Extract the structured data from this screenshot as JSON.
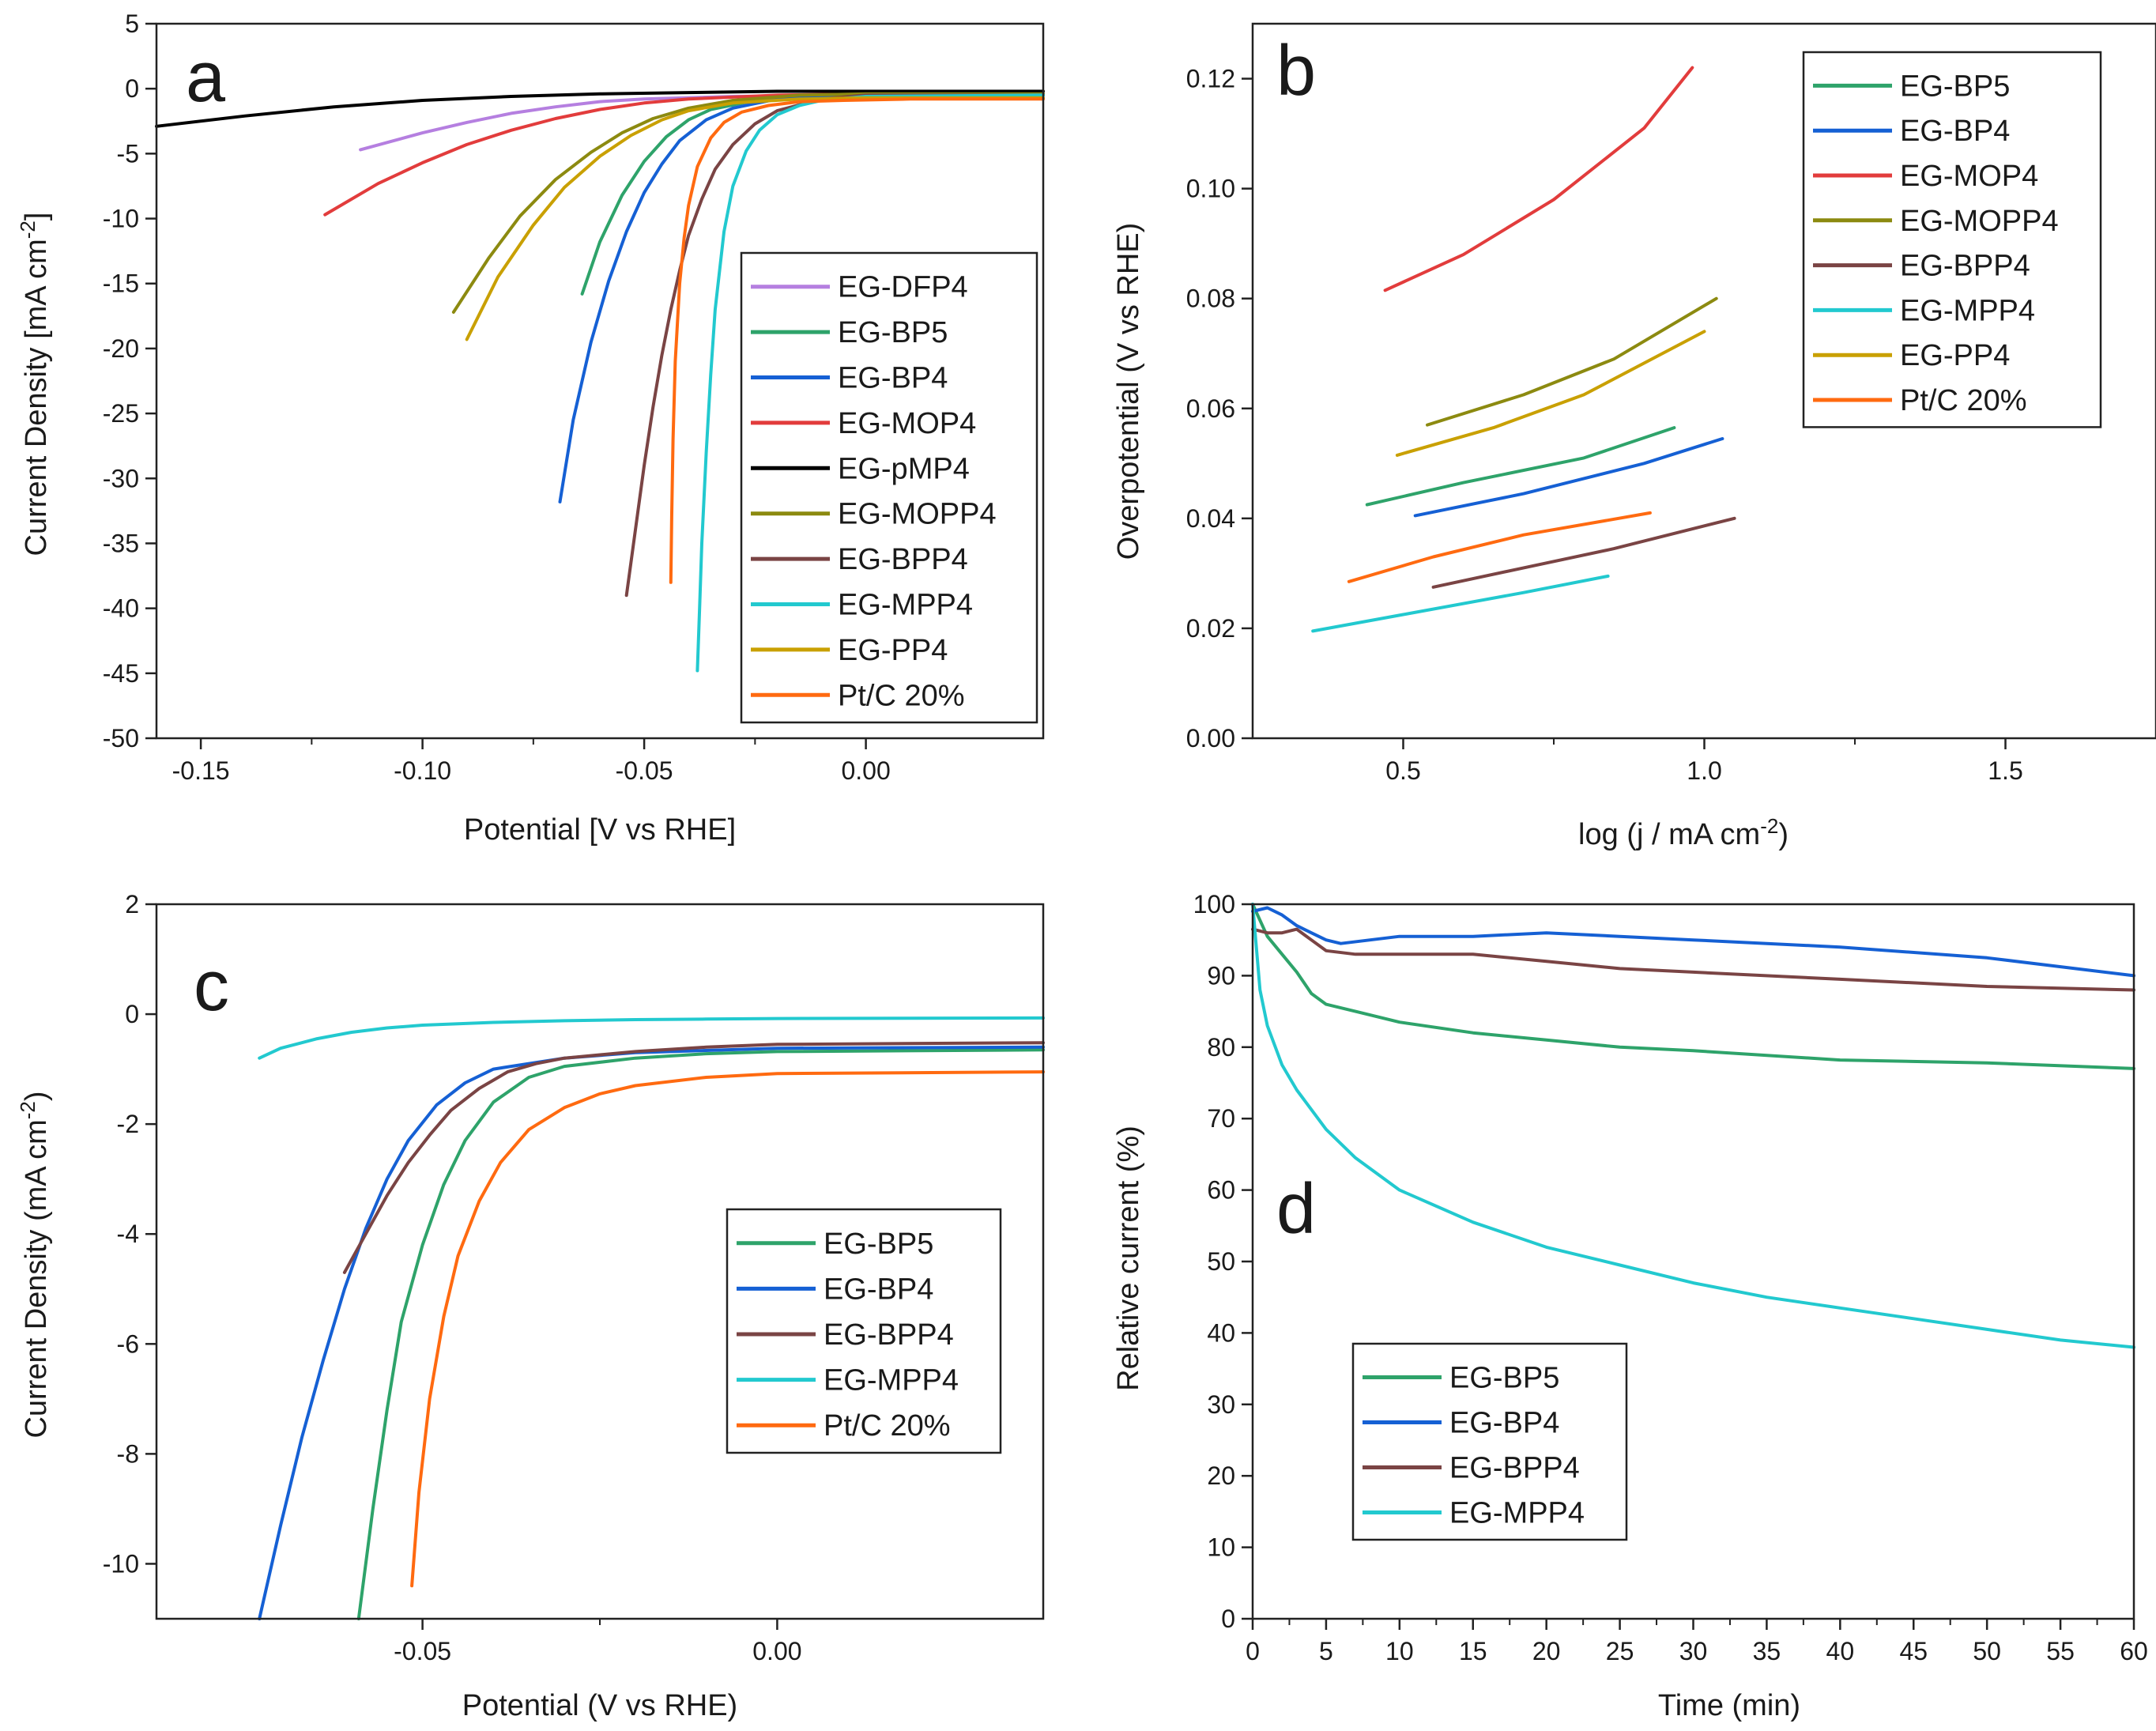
{
  "chart_data": [
    {
      "type": "line",
      "panel_label": "a",
      "xlabel": "Potential [V vs RHE]",
      "ylabel": "Current Density [mA cm",
      "ylabel_sup": "-2",
      "ylabel_end": "]",
      "xlim": [
        -0.16,
        0.04
      ],
      "ylim": [
        -50,
        5
      ],
      "xticks": [
        -0.15,
        -0.1,
        -0.05,
        0.0
      ],
      "xtick_labels": [
        "-0.15",
        "-0.10",
        "-0.05",
        "0.00"
      ],
      "yticks": [
        5,
        0,
        -5,
        -10,
        -15,
        -20,
        -25,
        -30,
        -35,
        -40,
        -45,
        -50
      ],
      "ytick_labels": [
        "5",
        "0",
        "-5",
        "-10",
        "-15",
        "-20",
        "-25",
        "-30",
        "-35",
        "-40",
        "-45",
        "-50"
      ],
      "legend_position": "center-right",
      "series": [
        {
          "name": "EG-DFP4",
          "color": "#b57fe0",
          "x": [
            -0.114,
            -0.1,
            -0.09,
            -0.08,
            -0.07,
            -0.06,
            -0.05,
            -0.03,
            0.0,
            0.04
          ],
          "y": [
            -4.7,
            -3.4,
            -2.6,
            -1.9,
            -1.4,
            -1.0,
            -0.8,
            -0.6,
            -0.5,
            -0.5
          ]
        },
        {
          "name": "EG-BP5",
          "color": "#2ea36a",
          "x": [
            -0.064,
            -0.06,
            -0.055,
            -0.05,
            -0.045,
            -0.04,
            -0.035,
            -0.025,
            -0.015,
            0.0,
            0.04
          ],
          "y": [
            -15.8,
            -11.8,
            -8.2,
            -5.6,
            -3.7,
            -2.4,
            -1.6,
            -0.9,
            -0.6,
            -0.5,
            -0.5
          ]
        },
        {
          "name": "EG-BP4",
          "color": "#1560d4",
          "x": [
            -0.069,
            -0.066,
            -0.062,
            -0.058,
            -0.054,
            -0.05,
            -0.046,
            -0.042,
            -0.036,
            -0.03,
            -0.02,
            0.0,
            0.04
          ],
          "y": [
            -31.8,
            -25.5,
            -19.5,
            -14.8,
            -11.0,
            -8.0,
            -5.8,
            -4.0,
            -2.4,
            -1.5,
            -0.8,
            -0.5,
            -0.5
          ]
        },
        {
          "name": "EG-MOP4",
          "color": "#e23c3c",
          "x": [
            -0.122,
            -0.11,
            -0.1,
            -0.09,
            -0.08,
            -0.07,
            -0.06,
            -0.05,
            -0.04,
            -0.02,
            0.0,
            0.04
          ],
          "y": [
            -9.7,
            -7.3,
            -5.7,
            -4.3,
            -3.2,
            -2.3,
            -1.6,
            -1.1,
            -0.8,
            -0.5,
            -0.4,
            -0.4
          ]
        },
        {
          "name": "EG-pMP4",
          "color": "#000000",
          "x": [
            -0.16,
            -0.14,
            -0.12,
            -0.1,
            -0.08,
            -0.06,
            -0.04,
            -0.02,
            0.0,
            0.04
          ],
          "y": [
            -2.9,
            -2.1,
            -1.4,
            -0.9,
            -0.6,
            -0.4,
            -0.3,
            -0.2,
            -0.2,
            -0.2
          ]
        },
        {
          "name": "EG-MOPP4",
          "color": "#8c8a10",
          "x": [
            -0.093,
            -0.085,
            -0.078,
            -0.07,
            -0.062,
            -0.055,
            -0.048,
            -0.04,
            -0.03,
            -0.015,
            0.0,
            0.04
          ],
          "y": [
            -17.2,
            -13.0,
            -9.8,
            -7.0,
            -4.9,
            -3.4,
            -2.3,
            -1.5,
            -0.9,
            -0.5,
            -0.4,
            -0.4
          ]
        },
        {
          "name": "EG-BPP4",
          "color": "#7a4444",
          "x": [
            -0.054,
            -0.052,
            -0.05,
            -0.048,
            -0.046,
            -0.044,
            -0.042,
            -0.04,
            -0.037,
            -0.034,
            -0.03,
            -0.025,
            -0.02,
            -0.01,
            0.0,
            0.04
          ],
          "y": [
            -39.0,
            -34.0,
            -29.0,
            -24.5,
            -20.5,
            -17.0,
            -14.0,
            -11.3,
            -8.5,
            -6.2,
            -4.3,
            -2.7,
            -1.7,
            -0.8,
            -0.5,
            -0.5
          ]
        },
        {
          "name": "EG-MPP4",
          "color": "#22c9cf",
          "x": [
            -0.038,
            -0.0375,
            -0.037,
            -0.036,
            -0.035,
            -0.034,
            -0.032,
            -0.03,
            -0.027,
            -0.024,
            -0.02,
            -0.015,
            -0.01,
            0.0,
            0.04
          ],
          "y": [
            -44.8,
            -40.0,
            -35.0,
            -28.0,
            -22.0,
            -17.0,
            -11.0,
            -7.5,
            -4.8,
            -3.2,
            -2.0,
            -1.3,
            -0.9,
            -0.6,
            -0.5
          ]
        },
        {
          "name": "EG-PP4",
          "color": "#c9a000",
          "x": [
            -0.09,
            -0.083,
            -0.075,
            -0.068,
            -0.06,
            -0.053,
            -0.046,
            -0.04,
            -0.03,
            -0.015,
            0.0,
            0.04
          ],
          "y": [
            -19.3,
            -14.5,
            -10.5,
            -7.6,
            -5.2,
            -3.6,
            -2.4,
            -1.7,
            -1.1,
            -0.8,
            -0.7,
            -0.7
          ]
        },
        {
          "name": "Pt/C 20%",
          "color": "#ff6a10",
          "x": [
            -0.044,
            -0.0438,
            -0.0435,
            -0.043,
            -0.042,
            -0.041,
            -0.04,
            -0.038,
            -0.035,
            -0.032,
            -0.028,
            -0.022,
            -0.015,
            -0.005,
            0.01,
            0.04
          ],
          "y": [
            -38.0,
            -33.0,
            -27.0,
            -21.0,
            -15.0,
            -11.5,
            -9.0,
            -6.0,
            -3.8,
            -2.6,
            -1.8,
            -1.3,
            -1.0,
            -0.9,
            -0.8,
            -0.8
          ]
        }
      ]
    },
    {
      "type": "line",
      "panel_label": "b",
      "xlabel": "log (j / mA cm",
      "xlabel_sup": "-2",
      "xlabel_end": ")",
      "ylabel": "Overpotential (V vs RHE)",
      "xlim": [
        0.25,
        1.75
      ],
      "ylim": [
        0,
        0.13
      ],
      "xticks": [
        0.5,
        1.0,
        1.5
      ],
      "xtick_labels": [
        "0.5",
        "1.0",
        "1.5"
      ],
      "yticks": [
        0,
        0.02,
        0.04,
        0.06,
        0.08,
        0.1,
        0.12
      ],
      "ytick_labels": [
        "0.00",
        "0.02",
        "0.04",
        "0.06",
        "0.08",
        "0.10",
        "0.12"
      ],
      "legend_position": "top-right",
      "series": [
        {
          "name": "EG-BP5",
          "color": "#2ea36a",
          "x": [
            0.44,
            0.6,
            0.8,
            0.95
          ],
          "y": [
            0.0425,
            0.0465,
            0.051,
            0.0565
          ]
        },
        {
          "name": "EG-BP4",
          "color": "#1560d4",
          "x": [
            0.52,
            0.7,
            0.9,
            1.03
          ],
          "y": [
            0.0405,
            0.0445,
            0.05,
            0.0545
          ]
        },
        {
          "name": "EG-MOP4",
          "color": "#e23c3c",
          "x": [
            0.47,
            0.6,
            0.75,
            0.9,
            0.98
          ],
          "y": [
            0.0815,
            0.088,
            0.098,
            0.111,
            0.122
          ]
        },
        {
          "name": "EG-MOPP4",
          "color": "#8c8a10",
          "x": [
            0.54,
            0.7,
            0.85,
            1.02
          ],
          "y": [
            0.057,
            0.0625,
            0.069,
            0.08
          ]
        },
        {
          "name": "EG-BPP4",
          "color": "#7a4444",
          "x": [
            0.55,
            0.7,
            0.85,
            1.05
          ],
          "y": [
            0.0275,
            0.031,
            0.0345,
            0.04
          ]
        },
        {
          "name": "EG-MPP4",
          "color": "#22c9cf",
          "x": [
            0.35,
            0.5,
            0.7,
            0.84
          ],
          "y": [
            0.0195,
            0.0225,
            0.0265,
            0.0295
          ]
        },
        {
          "name": "EG-PP4",
          "color": "#c9a000",
          "x": [
            0.49,
            0.65,
            0.8,
            1.0
          ],
          "y": [
            0.0515,
            0.0565,
            0.0625,
            0.074
          ]
        },
        {
          "name": "Pt/C 20%",
          "color": "#ff6a10",
          "x": [
            0.41,
            0.55,
            0.7,
            0.91
          ],
          "y": [
            0.0285,
            0.033,
            0.037,
            0.041
          ]
        }
      ]
    },
    {
      "type": "line",
      "panel_label": "c",
      "xlabel": "Potential (V vs RHE)",
      "ylabel": "Current Density (mA cm",
      "ylabel_sup": "-2",
      "ylabel_end": ")",
      "xlim": [
        -0.0875,
        0.0375
      ],
      "ylim": [
        -11,
        2
      ],
      "xticks": [
        -0.05,
        0.0
      ],
      "xtick_labels": [
        "-0.05",
        "0.00"
      ],
      "yticks": [
        2,
        0,
        -2,
        -4,
        -6,
        -8,
        -10
      ],
      "ytick_labels": [
        "2",
        "0",
        "-2",
        "-4",
        "-6",
        "-8",
        "-10"
      ],
      "legend_position": "center-right",
      "series": [
        {
          "name": "EG-BP5",
          "color": "#2ea36a",
          "x": [
            -0.059,
            -0.057,
            -0.055,
            -0.053,
            -0.05,
            -0.047,
            -0.044,
            -0.04,
            -0.035,
            -0.03,
            -0.02,
            -0.01,
            0.0,
            0.0375
          ],
          "y": [
            -11.0,
            -9.0,
            -7.2,
            -5.6,
            -4.2,
            -3.1,
            -2.3,
            -1.6,
            -1.15,
            -0.95,
            -0.8,
            -0.72,
            -0.68,
            -0.65
          ]
        },
        {
          "name": "EG-BP4",
          "color": "#1560d4",
          "x": [
            -0.073,
            -0.07,
            -0.067,
            -0.064,
            -0.061,
            -0.058,
            -0.055,
            -0.052,
            -0.048,
            -0.044,
            -0.04,
            -0.03,
            -0.02,
            0.0,
            0.0375
          ],
          "y": [
            -11.0,
            -9.3,
            -7.7,
            -6.3,
            -5.0,
            -3.9,
            -3.0,
            -2.3,
            -1.65,
            -1.25,
            -1.0,
            -0.8,
            -0.7,
            -0.62,
            -0.6
          ]
        },
        {
          "name": "EG-BPP4",
          "color": "#7a4444",
          "x": [
            -0.061,
            -0.058,
            -0.055,
            -0.052,
            -0.049,
            -0.046,
            -0.042,
            -0.038,
            -0.034,
            -0.03,
            -0.02,
            -0.01,
            0.0,
            0.0375
          ],
          "y": [
            -4.7,
            -4.0,
            -3.3,
            -2.7,
            -2.2,
            -1.75,
            -1.35,
            -1.05,
            -0.9,
            -0.8,
            -0.68,
            -0.6,
            -0.55,
            -0.52
          ]
        },
        {
          "name": "EG-MPP4",
          "color": "#22c9cf",
          "x": [
            -0.073,
            -0.07,
            -0.065,
            -0.06,
            -0.055,
            -0.05,
            -0.04,
            -0.03,
            -0.02,
            -0.01,
            0.0,
            0.0375
          ],
          "y": [
            -0.8,
            -0.62,
            -0.45,
            -0.33,
            -0.25,
            -0.2,
            -0.15,
            -0.12,
            -0.1,
            -0.09,
            -0.08,
            -0.07
          ]
        },
        {
          "name": "Pt/C 20%",
          "color": "#ff6a10",
          "x": [
            -0.0515,
            -0.0505,
            -0.049,
            -0.047,
            -0.045,
            -0.042,
            -0.039,
            -0.035,
            -0.03,
            -0.025,
            -0.02,
            -0.01,
            0.0,
            0.0375
          ],
          "y": [
            -10.4,
            -8.7,
            -7.0,
            -5.5,
            -4.4,
            -3.4,
            -2.7,
            -2.1,
            -1.7,
            -1.45,
            -1.3,
            -1.15,
            -1.08,
            -1.05
          ]
        }
      ]
    },
    {
      "type": "line",
      "panel_label": "d",
      "xlabel": "Time (min)",
      "ylabel": "Relative current (%)",
      "xlim": [
        0,
        60
      ],
      "ylim": [
        0,
        100
      ],
      "xticks": [
        0,
        5,
        10,
        15,
        20,
        25,
        30,
        35,
        40,
        45,
        50,
        55,
        60
      ],
      "xtick_labels": [
        "0",
        "5",
        "10",
        "15",
        "20",
        "25",
        "30",
        "35",
        "40",
        "45",
        "50",
        "55",
        "60"
      ],
      "yticks": [
        0,
        10,
        20,
        30,
        40,
        50,
        60,
        70,
        80,
        90,
        100
      ],
      "ytick_labels": [
        "0",
        "10",
        "20",
        "30",
        "40",
        "50",
        "60",
        "70",
        "80",
        "90",
        "100"
      ],
      "legend_position": "bottom-left",
      "series": [
        {
          "name": "EG-BP5",
          "color": "#2ea36a",
          "x": [
            0,
            1,
            2,
            3,
            4,
            5,
            7,
            10,
            15,
            20,
            25,
            30,
            40,
            50,
            60
          ],
          "y": [
            100,
            95.5,
            93.0,
            90.5,
            87.5,
            86.0,
            85.0,
            83.5,
            82.0,
            81.0,
            80.0,
            79.5,
            78.2,
            77.8,
            77.0
          ]
        },
        {
          "name": "EG-BP4",
          "color": "#1560d4",
          "x": [
            0,
            1,
            2,
            3,
            4,
            5,
            6,
            8,
            10,
            15,
            20,
            25,
            30,
            40,
            50,
            60
          ],
          "y": [
            99,
            99.5,
            98.5,
            97.0,
            96.0,
            95.0,
            94.5,
            95.0,
            95.5,
            95.5,
            96.0,
            95.5,
            95.0,
            94.0,
            92.5,
            90.0
          ]
        },
        {
          "name": "EG-BPP4",
          "color": "#7a4444",
          "x": [
            0,
            1,
            2,
            3,
            4,
            5,
            7,
            10,
            15,
            20,
            25,
            30,
            40,
            50,
            60
          ],
          "y": [
            96.5,
            96.0,
            96.0,
            96.5,
            95.0,
            93.5,
            93.0,
            93.0,
            93.0,
            92.0,
            91.0,
            90.5,
            89.5,
            88.5,
            88.0
          ]
        },
        {
          "name": "EG-MPP4",
          "color": "#22c9cf",
          "x": [
            0,
            0.5,
            1,
            2,
            3,
            5,
            7,
            10,
            15,
            20,
            25,
            30,
            35,
            40,
            45,
            50,
            55,
            60
          ],
          "y": [
            100,
            88.0,
            83.0,
            77.5,
            74.0,
            68.5,
            64.5,
            60.0,
            55.5,
            52.0,
            49.5,
            47.0,
            45.0,
            43.5,
            42.0,
            40.5,
            39.0,
            38.0
          ]
        }
      ]
    }
  ]
}
